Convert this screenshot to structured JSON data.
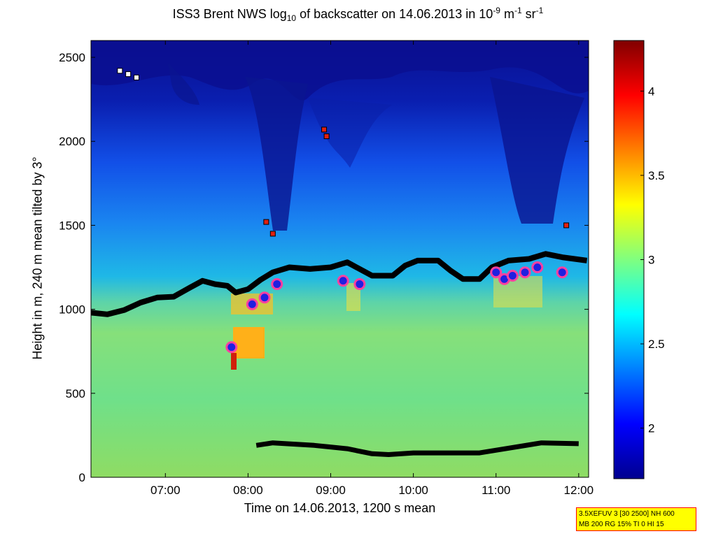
{
  "chart_data": {
    "type": "heatmap",
    "title": {
      "pre": "ISS3 Brent NWS log",
      "sub": "10",
      "mid": " of backscatter on 14.06.2013 in 10",
      "sup1": "-9",
      "mid2": " m",
      "sup2": "-1",
      "mid3": " sr",
      "sup3": "-1"
    },
    "xlabel": "Time on 14.06.2013, 1200 s mean",
    "ylabel": "Height in m, 240 m mean tilted by 3°",
    "xlim": [
      6.1,
      12.12
    ],
    "ylim": [
      0,
      2600
    ],
    "x_ticks": [
      {
        "value": 7,
        "label": "07:00"
      },
      {
        "value": 8,
        "label": "08:00"
      },
      {
        "value": 9,
        "label": "09:00"
      },
      {
        "value": 10,
        "label": "10:00"
      },
      {
        "value": 11,
        "label": "11:00"
      },
      {
        "value": 12,
        "label": "12:00"
      }
    ],
    "y_ticks": [
      {
        "value": 0,
        "label": "0"
      },
      {
        "value": 500,
        "label": "500"
      },
      {
        "value": 1000,
        "label": "1000"
      },
      {
        "value": 1500,
        "label": "1500"
      },
      {
        "value": 2000,
        "label": "2000"
      },
      {
        "value": 2500,
        "label": "2500"
      }
    ],
    "colorbar": {
      "range": [
        1.7,
        4.3
      ],
      "ticks": [
        {
          "value": 2,
          "label": "2"
        },
        {
          "value": 2.5,
          "label": "2.5"
        },
        {
          "value": 3,
          "label": "3"
        },
        {
          "value": 3.5,
          "label": "3.5"
        },
        {
          "value": 4,
          "label": "4"
        }
      ],
      "colormap": "jet"
    },
    "boundary_layer_top": [
      [
        6.1,
        980
      ],
      [
        6.3,
        970
      ],
      [
        6.5,
        995
      ],
      [
        6.7,
        1040
      ],
      [
        6.9,
        1070
      ],
      [
        7.1,
        1075
      ],
      [
        7.3,
        1130
      ],
      [
        7.45,
        1170
      ],
      [
        7.6,
        1150
      ],
      [
        7.75,
        1140
      ],
      [
        7.85,
        1100
      ],
      [
        8.0,
        1120
      ],
      [
        8.15,
        1175
      ],
      [
        8.3,
        1220
      ],
      [
        8.5,
        1250
      ],
      [
        8.75,
        1240
      ],
      [
        9.0,
        1250
      ],
      [
        9.2,
        1280
      ],
      [
        9.35,
        1240
      ],
      [
        9.5,
        1200
      ],
      [
        9.75,
        1200
      ],
      [
        9.9,
        1260
      ],
      [
        10.05,
        1290
      ],
      [
        10.3,
        1290
      ],
      [
        10.45,
        1230
      ],
      [
        10.6,
        1180
      ],
      [
        10.8,
        1180
      ],
      [
        10.95,
        1250
      ],
      [
        11.15,
        1290
      ],
      [
        11.4,
        1300
      ],
      [
        11.6,
        1330
      ],
      [
        11.8,
        1310
      ],
      [
        12.1,
        1290
      ]
    ],
    "low_layer": [
      [
        8.1,
        190
      ],
      [
        8.3,
        205
      ],
      [
        8.8,
        190
      ],
      [
        9.2,
        170
      ],
      [
        9.5,
        140
      ],
      [
        9.7,
        135
      ],
      [
        10.0,
        145
      ],
      [
        10.8,
        145
      ],
      [
        11.55,
        205
      ],
      [
        12.0,
        200
      ]
    ],
    "cloud_base_markers": [
      [
        7.8,
        775
      ],
      [
        8.05,
        1030
      ],
      [
        8.2,
        1070
      ],
      [
        8.35,
        1150
      ],
      [
        9.15,
        1170
      ],
      [
        9.35,
        1150
      ],
      [
        11.0,
        1220
      ],
      [
        11.1,
        1180
      ],
      [
        11.2,
        1200
      ],
      [
        11.35,
        1220
      ],
      [
        11.5,
        1250
      ],
      [
        11.8,
        1220
      ]
    ],
    "high_markers": [
      [
        6.45,
        2420
      ],
      [
        6.55,
        2400
      ],
      [
        6.65,
        2380
      ],
      [
        8.95,
        2030
      ],
      [
        8.92,
        2070
      ],
      [
        8.22,
        1520
      ],
      [
        8.3,
        1450
      ],
      [
        11.85,
        1500
      ]
    ],
    "infobox": {
      "line1": "3.5XEFUV 3 [30 2500] NH 600",
      "line2": "MB 200 RG 15% TI 0 HI 15"
    }
  }
}
